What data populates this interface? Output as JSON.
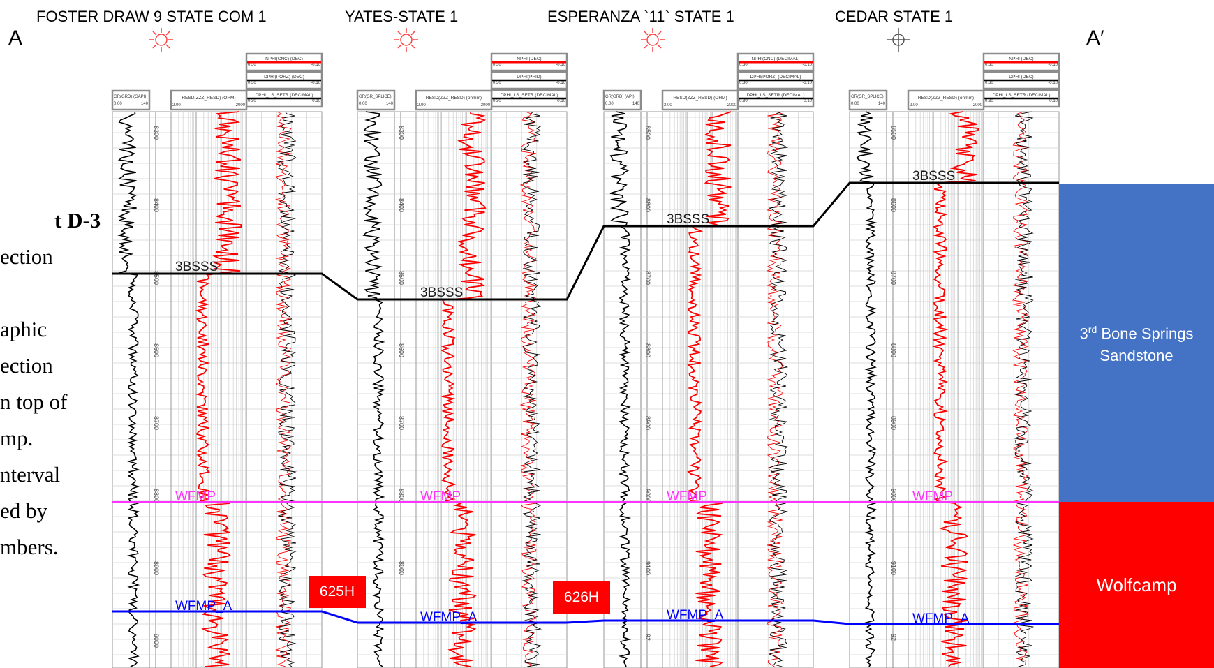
{
  "section": {
    "left_label": "A",
    "right_label": "A′"
  },
  "side_text": {
    "lines": [
      {
        "pre": "",
        "bold": "t D-3"
      },
      {
        "pre": "ection",
        "bold": ""
      },
      {
        "pre": "",
        "bold": ""
      },
      {
        "pre": "aphic",
        "bold": ""
      },
      {
        "pre": "ection",
        "bold": ""
      },
      {
        "pre": "n top of",
        "bold": ""
      },
      {
        "pre": "mp.",
        "bold": ""
      },
      {
        "pre": "nterval",
        "bold": ""
      },
      {
        "pre": "ed by",
        "bold": ""
      },
      {
        "pre": "mbers.",
        "bold": ""
      }
    ]
  },
  "wells": [
    {
      "name": "FOSTER DRAW 9 STATE COM 1",
      "symbol": "sun",
      "symbol_color": "#ff4040",
      "gr_header": "GR(GRD) (GAPI)",
      "gr_range": [
        "0.00",
        "140"
      ],
      "res_header": "RESD(ZZZ_RESD) (OHM)",
      "res_range": [
        "2.00",
        "2000"
      ],
      "top_headers": [
        {
          "title": "NPHI(CNC) (DEC)",
          "range": [
            "0.30",
            "-0.10"
          ],
          "color": "#ff0000"
        },
        {
          "title": "DPHI(PORZ) (DEC)",
          "range": [
            "0.30",
            "-0.10"
          ],
          "color": "#000000"
        },
        {
          "title": "DPHI_LS_SETR (DECIMAL)",
          "range": [
            "0.30",
            "-0.10"
          ],
          "color": "#000000"
        }
      ],
      "depth_ticks": [
        "8300",
        "8400",
        "8500",
        "8600",
        "8700",
        "8800",
        "8900",
        "9000"
      ],
      "tops": {
        "3BSSS": "3BSSS",
        "WFMP": "WFMP",
        "WFMP_A": "WFMP_A"
      }
    },
    {
      "name": "YATES-STATE 1",
      "symbol": "sun",
      "symbol_color": "#ff4040",
      "gr_header": "GR(GR_SPLICE)",
      "gr_range": [
        "0.00",
        "140"
      ],
      "res_header": "RESD(ZZZ_RESD) (ohmm)",
      "res_range": [
        "2.00",
        "2000"
      ],
      "top_headers": [
        {
          "title": "NPHI (DEC)",
          "range": [
            "0.30",
            "-0.10"
          ],
          "color": "#ff0000"
        },
        {
          "title": "DPHI(PHID)",
          "range": [
            "0.30",
            "-0.10"
          ],
          "color": "#000000"
        },
        {
          "title": "DPHI_LS_SETR (DECIMAL)",
          "range": [
            "0.30",
            "-0.10"
          ],
          "color": "#000000"
        }
      ],
      "depth_ticks": [
        "8300",
        "8400",
        "8500",
        "8600",
        "8700",
        "8800",
        "8900"
      ],
      "tops": {
        "3BSSS": "3BSSS",
        "WFMP": "WFMP",
        "WFMP_A": "WFMP_A"
      }
    },
    {
      "name": "ESPERANZA `11` STATE 1",
      "symbol": "sun",
      "symbol_color": "#ff4040",
      "gr_header": "GR(GRD) (API)",
      "gr_range": [
        "0.00",
        "140"
      ],
      "res_header": "RESD(ZZZ_RESD) (OHM)",
      "res_range": [
        "2.00",
        "2000"
      ],
      "top_headers": [
        {
          "title": "NPHI(CNC) (DECIMAL)",
          "range": [
            "0.30",
            "-0.10"
          ],
          "color": "#ff0000"
        },
        {
          "title": "DPHI(PORZ) (DECIMAL)",
          "range": [
            "0.30",
            "-0.10"
          ],
          "color": "#000000"
        },
        {
          "title": "DPHI_LS_SETR (DECIMAL)",
          "range": [
            "0.30",
            "-0.10"
          ],
          "color": "#000000"
        }
      ],
      "depth_ticks": [
        "8500",
        "8600",
        "8700",
        "8800",
        "8900",
        "9000",
        "9100",
        "92"
      ],
      "tops": {
        "3BSSS": "3BSSS",
        "WFMP": "WFMP",
        "WFMP_A": "WFMP_A"
      }
    },
    {
      "name": "CEDAR STATE 1",
      "symbol": "dry",
      "symbol_color": "#555555",
      "gr_header": "GR(GR_SPLICE)",
      "gr_range": [
        "0.00",
        "140"
      ],
      "res_header": "RESD(ZZZ_RESD) (ohmm)",
      "res_range": [
        "2.00",
        "2000"
      ],
      "top_headers": [
        {
          "title": "NPHI (DEC)",
          "range": [
            "0.30",
            "-0.10"
          ],
          "color": "#ff0000"
        },
        {
          "title": "DPHI (DEC)",
          "range": [
            "0.30",
            "-0.10"
          ],
          "color": "#000000"
        },
        {
          "title": "DPHI_LS_SETR (DECIMAL)",
          "range": [
            "0.30",
            "-0.10"
          ],
          "color": "#000000"
        }
      ],
      "depth_ticks": [
        "8500",
        "8600",
        "8700",
        "8800",
        "8900",
        "9000",
        "9100",
        "92"
      ],
      "tops": {
        "3BSSS": "3BSSS",
        "WFMP": "WFMP",
        "WFMP_A": "WFMP_A"
      }
    }
  ],
  "horizontal_wells": [
    "625H",
    "626H"
  ],
  "zones": [
    {
      "name_pre": "3",
      "name_sup": "rd",
      "name_post": " Bone Springs Sandstone",
      "color": "#4472c4"
    },
    {
      "name": "Wolfcamp",
      "color": "#ff0000"
    }
  ],
  "colors": {
    "bsss_line": "#000000",
    "wfmp_line": "#ff33ff",
    "wfmp_a_line": "#0000ff",
    "gr_curve": "#000000",
    "res_curve": "#ff0000",
    "nphi_curve": "#ff0000",
    "dphi_curve": "#000000"
  }
}
